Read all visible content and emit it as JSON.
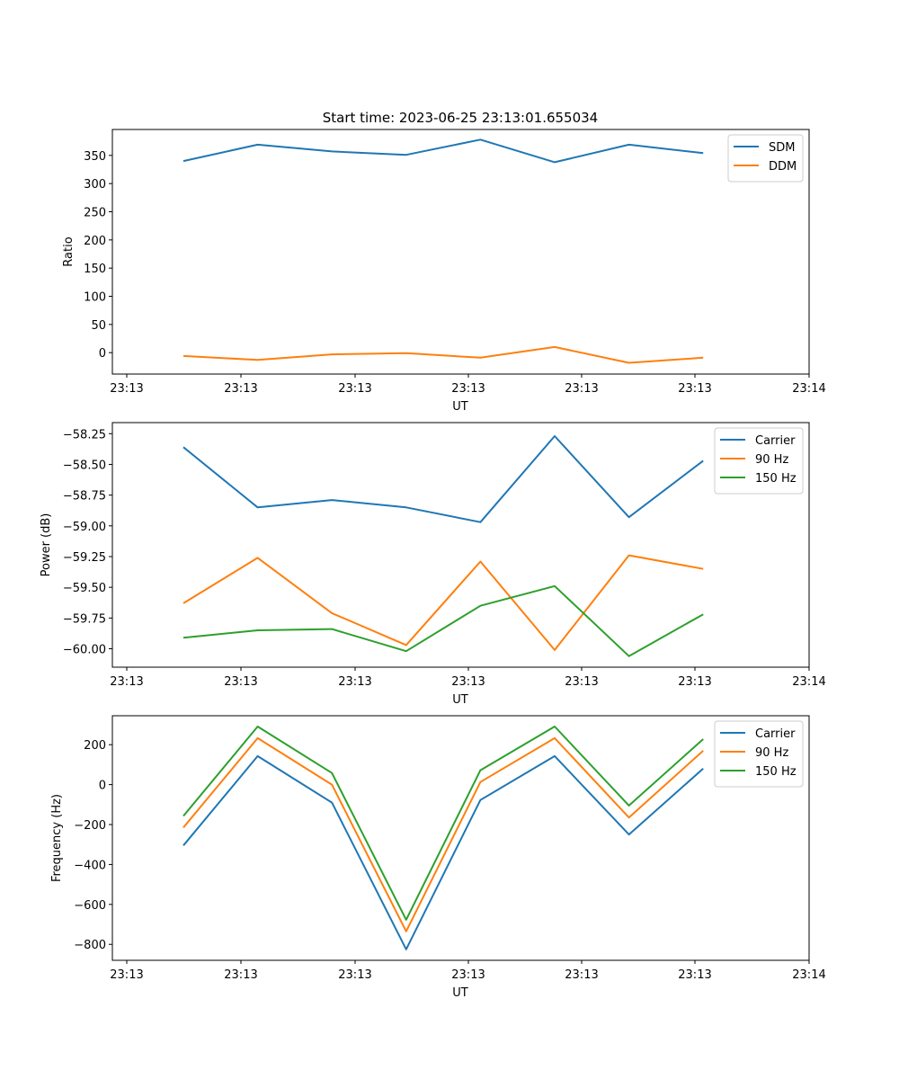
{
  "figure": {
    "title": "Start time: 2023-06-25 23:13:01.655034"
  },
  "chart_data": [
    {
      "type": "line",
      "title": "Start time: 2023-06-25 23:13:01.655034",
      "xlabel": "UT",
      "ylabel": "Ratio",
      "x_tick_labels": [
        "23:13",
        "23:13",
        "23:13",
        "23:13",
        "23:13",
        "23:13",
        "23:14"
      ],
      "x_points": 8,
      "ylim": [
        -38,
        396
      ],
      "y_ticks": [
        0,
        50,
        100,
        150,
        200,
        250,
        300,
        350
      ],
      "y_tick_labels": [
        "0",
        "50",
        "100",
        "150",
        "200",
        "250",
        "300",
        "350"
      ],
      "legend_position": "top-right",
      "series": [
        {
          "name": "SDM",
          "color": "#1f77b4",
          "values": [
            340,
            369,
            357,
            351,
            378,
            338,
            369,
            354
          ]
        },
        {
          "name": "DDM",
          "color": "#ff7f0e",
          "values": [
            -6,
            -13,
            -3,
            -1,
            -9,
            10,
            -18,
            -9
          ]
        }
      ]
    },
    {
      "type": "line",
      "title": "",
      "xlabel": "UT",
      "ylabel": "Power (dB)",
      "x_tick_labels": [
        "23:13",
        "23:13",
        "23:13",
        "23:13",
        "23:13",
        "23:13",
        "23:14"
      ],
      "x_points": 8,
      "ylim": [
        -60.15,
        -58.16
      ],
      "y_ticks": [
        -60.0,
        -59.75,
        -59.5,
        -59.25,
        -59.0,
        -58.75,
        -58.5,
        -58.25
      ],
      "y_tick_labels": [
        "−60.00",
        "−59.75",
        "−59.50",
        "−59.25",
        "−59.00",
        "−58.75",
        "−58.50",
        "−58.25"
      ],
      "legend_position": "top-right",
      "series": [
        {
          "name": "Carrier",
          "color": "#1f77b4",
          "values": [
            -58.36,
            -58.85,
            -58.79,
            -58.85,
            -58.97,
            -58.27,
            -58.93,
            -58.47
          ]
        },
        {
          "name": "90 Hz",
          "color": "#ff7f0e",
          "values": [
            -59.63,
            -59.26,
            -59.71,
            -59.97,
            -59.29,
            -60.01,
            -59.24,
            -59.35
          ]
        },
        {
          "name": "150 Hz",
          "color": "#2ca02c",
          "values": [
            -59.91,
            -59.85,
            -59.84,
            -60.02,
            -59.65,
            -59.49,
            -60.06,
            -59.72
          ]
        }
      ]
    },
    {
      "type": "line",
      "title": "",
      "xlabel": "UT",
      "ylabel": "Frequency (Hz)",
      "x_tick_labels": [
        "23:13",
        "23:13",
        "23:13",
        "23:13",
        "23:13",
        "23:13",
        "23:14"
      ],
      "x_points": 8,
      "ylim": [
        -880,
        345
      ],
      "y_ticks": [
        -800,
        -600,
        -400,
        -200,
        0,
        200
      ],
      "y_tick_labels": [
        "−800",
        "−600",
        "−400",
        "−200",
        "0",
        "200"
      ],
      "legend_position": "top-right",
      "series": [
        {
          "name": "Carrier",
          "color": "#1f77b4",
          "values": [
            -305,
            143,
            -90,
            -825,
            -77,
            143,
            -250,
            80
          ]
        },
        {
          "name": "90 Hz",
          "color": "#ff7f0e",
          "values": [
            -215,
            233,
            0,
            -735,
            13,
            233,
            -165,
            170
          ]
        },
        {
          "name": "150 Hz",
          "color": "#2ca02c",
          "values": [
            -157,
            291,
            58,
            -677,
            72,
            291,
            -105,
            228
          ]
        }
      ]
    }
  ]
}
